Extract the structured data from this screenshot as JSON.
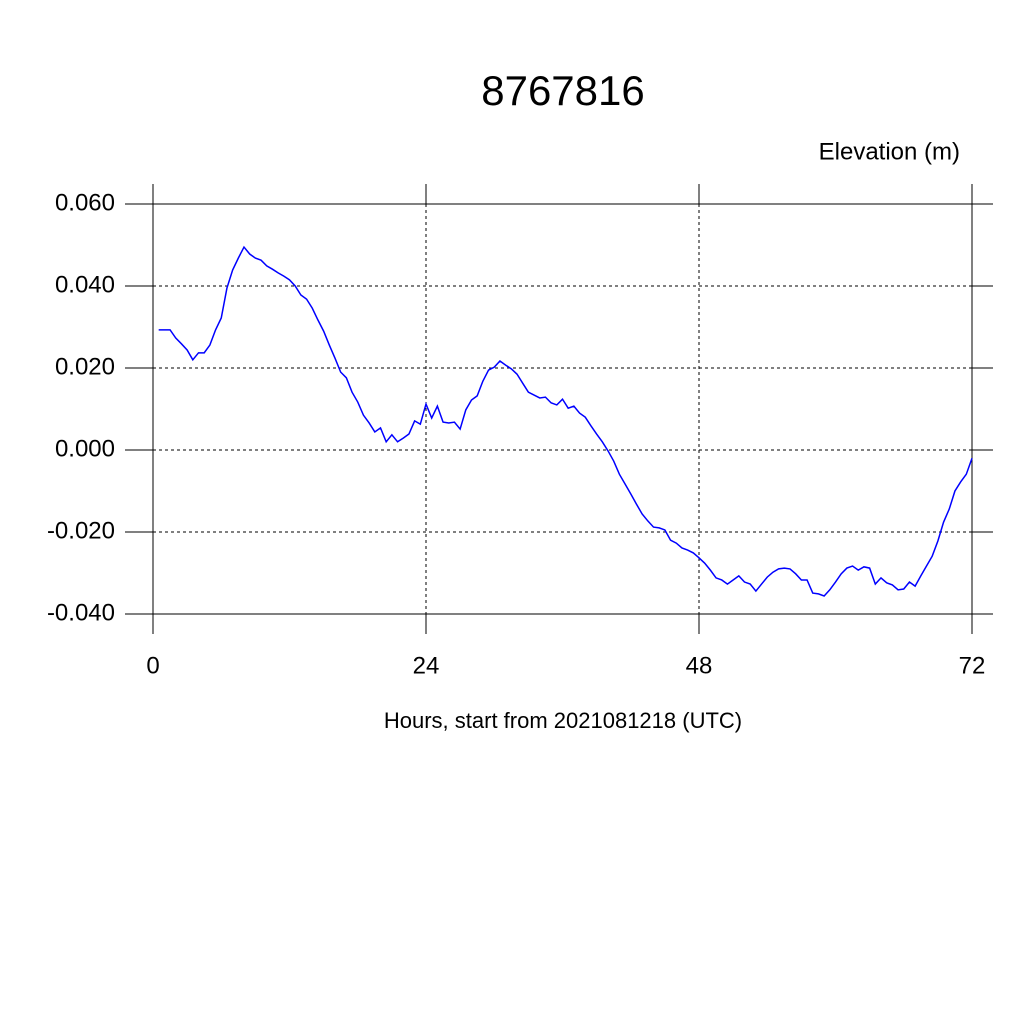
{
  "chart_data": {
    "type": "line",
    "title": "8767816",
    "subtitle": "Elevation (m)",
    "xlabel": "Hours, start from 2021081218 (UTC)",
    "x": [
      0.5,
      1,
      1.5,
      2,
      2.5,
      3,
      3.5,
      4,
      4.5,
      5,
      5.5,
      6,
      6.5,
      7,
      7.5,
      8,
      8.5,
      9,
      9.5,
      10,
      10.5,
      11,
      11.5,
      12,
      12.5,
      13,
      13.5,
      14,
      14.5,
      15,
      15.5,
      16,
      16.5,
      17,
      17.5,
      18,
      18.5,
      19,
      19.5,
      20,
      20.5,
      21,
      21.5,
      22,
      22.5,
      23,
      23.5,
      24,
      24.5,
      25,
      25.5,
      26,
      26.5,
      27,
      27.5,
      28,
      28.5,
      29,
      29.5,
      30,
      30.5,
      31,
      31.5,
      32,
      32.5,
      33,
      33.5,
      34,
      34.5,
      35,
      35.5,
      36,
      36.5,
      37,
      37.5,
      38,
      38.5,
      39,
      39.5,
      40,
      40.5,
      41,
      41.5,
      42,
      42.5,
      43,
      43.5,
      44,
      44.5,
      45,
      45.5,
      46,
      46.5,
      47,
      47.5,
      48,
      48.5,
      49,
      49.5,
      50,
      50.5,
      51,
      51.5,
      52,
      52.5,
      53,
      53.5,
      54,
      54.5,
      55,
      55.5,
      56,
      56.5,
      57,
      57.5,
      58,
      58.5,
      59,
      59.5,
      60,
      60.5,
      61,
      61.5,
      62,
      62.5,
      63,
      63.5,
      64,
      64.5,
      65,
      65.5,
      66,
      66.5,
      67,
      67.5,
      68,
      68.5,
      69,
      69.5,
      70,
      70.5,
      71,
      71.5,
      72
    ],
    "series": [
      {
        "name": "Elevation",
        "color": "#0000ff",
        "values": [
          0.0293,
          0.0293,
          0.0293,
          0.0273,
          0.0259,
          0.0244,
          0.022,
          0.0237,
          0.0237,
          0.0256,
          0.0293,
          0.0322,
          0.0395,
          0.0439,
          0.0468,
          0.0495,
          0.0478,
          0.0468,
          0.0463,
          0.0449,
          0.0441,
          0.0432,
          0.0424,
          0.0415,
          0.04,
          0.0378,
          0.0368,
          0.0346,
          0.0317,
          0.029,
          0.0256,
          0.0224,
          0.019,
          0.0176,
          0.0141,
          0.0117,
          0.0085,
          0.0066,
          0.0044,
          0.0054,
          0.002,
          0.0037,
          0.002,
          0.0029,
          0.0039,
          0.0071,
          0.0063,
          0.0112,
          0.0078,
          0.0107,
          0.0068,
          0.0066,
          0.0068,
          0.0051,
          0.0098,
          0.0122,
          0.0132,
          0.0168,
          0.0195,
          0.0202,
          0.0217,
          0.0207,
          0.0198,
          0.0185,
          0.0163,
          0.0141,
          0.0134,
          0.0127,
          0.0129,
          0.0115,
          0.011,
          0.0124,
          0.0102,
          0.0107,
          0.009,
          0.008,
          0.0059,
          0.0039,
          0.002,
          -0.0002,
          -0.0027,
          -0.0059,
          -0.0083,
          -0.0107,
          -0.0132,
          -0.0156,
          -0.0173,
          -0.0188,
          -0.019,
          -0.0195,
          -0.022,
          -0.0227,
          -0.0239,
          -0.0244,
          -0.0251,
          -0.0263,
          -0.0276,
          -0.0293,
          -0.0312,
          -0.0317,
          -0.0327,
          -0.0317,
          -0.0307,
          -0.0322,
          -0.0327,
          -0.0344,
          -0.0327,
          -0.031,
          -0.0298,
          -0.029,
          -0.0288,
          -0.029,
          -0.0302,
          -0.0317,
          -0.0317,
          -0.0349,
          -0.0351,
          -0.0356,
          -0.0341,
          -0.0322,
          -0.0302,
          -0.0288,
          -0.0283,
          -0.0293,
          -0.0285,
          -0.0288,
          -0.0327,
          -0.0312,
          -0.0324,
          -0.0329,
          -0.0341,
          -0.0339,
          -0.0322,
          -0.0332,
          -0.0307,
          -0.0283,
          -0.0259,
          -0.0222,
          -0.0176,
          -0.0144,
          -0.01,
          -0.0078,
          -0.0059,
          -0.002
        ]
      }
    ],
    "xlim": [
      0,
      72
    ],
    "xticks": [
      0,
      24,
      48,
      72
    ],
    "ylim": [
      -0.04,
      0.06
    ],
    "yticks": [
      {
        "value": -0.04,
        "label": "-0.040"
      },
      {
        "value": -0.02,
        "label": "-0.020"
      },
      {
        "value": 0,
        "label": "0.000"
      },
      {
        "value": 0.02,
        "label": "0.020"
      },
      {
        "value": 0.04,
        "label": "0.040"
      },
      {
        "value": 0.06,
        "label": "0.060"
      }
    ],
    "grid": true
  }
}
